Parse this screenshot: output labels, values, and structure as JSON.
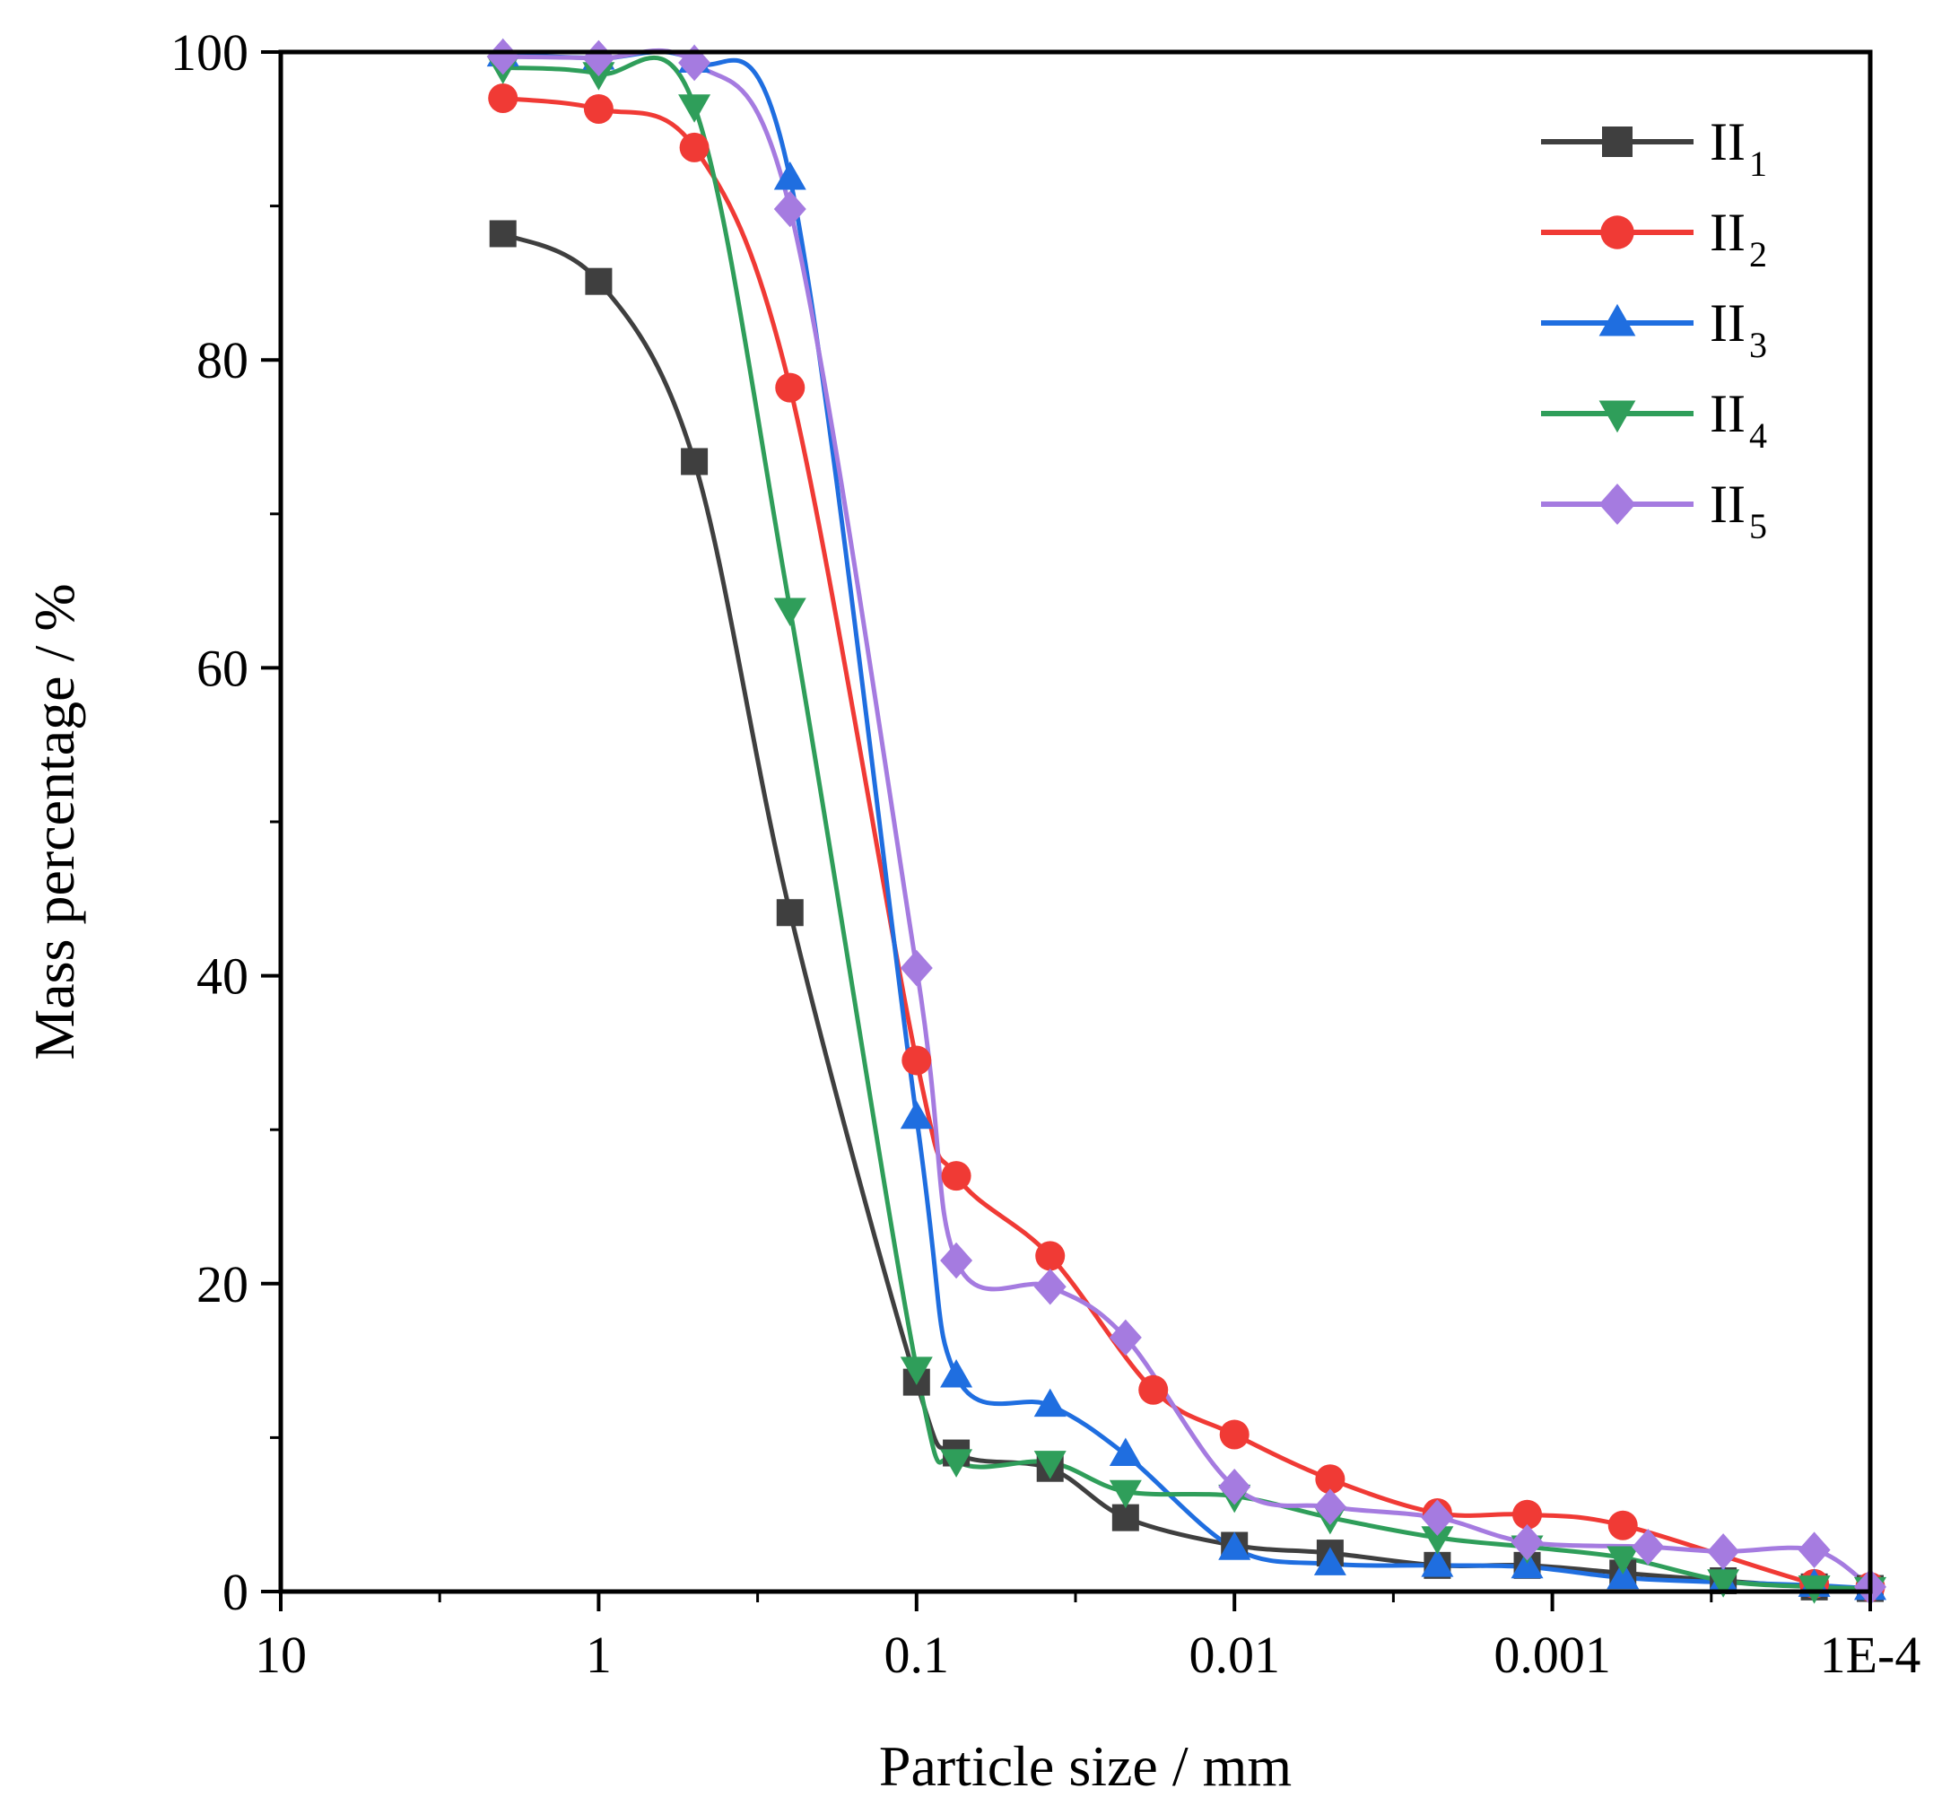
{
  "chart_data": {
    "type": "line",
    "x_scale": "log",
    "x_reversed": true,
    "xlabel": "Particle size / mm",
    "ylabel": "Mass percentage / %",
    "xlim": [
      10,
      0.0001
    ],
    "ylim": [
      0,
      100
    ],
    "x_ticks": [
      {
        "value": 10,
        "label": "10"
      },
      {
        "value": 1,
        "label": "1"
      },
      {
        "value": 0.1,
        "label": "0.1"
      },
      {
        "value": 0.01,
        "label": "0.01"
      },
      {
        "value": 0.001,
        "label": "0.001"
      },
      {
        "value": 0.0001,
        "label": "1E-4"
      }
    ],
    "y_ticks": [
      {
        "value": 0,
        "label": "0"
      },
      {
        "value": 20,
        "label": "20"
      },
      {
        "value": 40,
        "label": "40"
      },
      {
        "value": 60,
        "label": "60"
      },
      {
        "value": 80,
        "label": "80"
      },
      {
        "value": 100,
        "label": "100"
      }
    ],
    "grid": false,
    "legend_position": "top-right",
    "series": [
      {
        "name": "II",
        "sub": "1",
        "marker": "square",
        "color": "#3f3f3f",
        "x": [
          2,
          1,
          0.5,
          0.25,
          0.1,
          0.075,
          0.038,
          0.022,
          0.01,
          0.005,
          0.0023,
          0.0012,
          0.0006,
          0.00029,
          0.00015,
          0.0001
        ],
        "y": [
          88.2,
          85.1,
          73.4,
          44.1,
          13.6,
          9.0,
          8.0,
          4.8,
          3.0,
          2.5,
          1.7,
          1.7,
          1.2,
          0.7,
          0.3,
          0.2
        ]
      },
      {
        "name": "II",
        "sub": "2",
        "marker": "circle",
        "color": "#f03a35",
        "x": [
          2,
          1,
          0.5,
          0.25,
          0.1,
          0.075,
          0.038,
          0.018,
          0.01,
          0.005,
          0.0023,
          0.0012,
          0.0006,
          0.00015,
          0.0001
        ],
        "y": [
          97.0,
          96.3,
          93.8,
          78.2,
          34.5,
          27.0,
          21.8,
          13.1,
          10.2,
          7.3,
          5.1,
          5.0,
          4.3,
          0.5,
          0.3
        ]
      },
      {
        "name": "II",
        "sub": "3",
        "marker": "triangle-up",
        "color": "#1f6ee0",
        "x": [
          2,
          1,
          0.5,
          0.25,
          0.1,
          0.075,
          0.038,
          0.022,
          0.01,
          0.005,
          0.0023,
          0.0012,
          0.0006,
          0.00029,
          0.00015,
          0.0001
        ],
        "y": [
          99.8,
          99.6,
          99.4,
          91.8,
          30.8,
          14.0,
          12.1,
          8.9,
          2.8,
          1.8,
          1.7,
          1.6,
          0.9,
          0.6,
          0.4,
          0.2
        ]
      },
      {
        "name": "II",
        "sub": "4",
        "marker": "triangle-down",
        "color": "#2f9e5a",
        "x": [
          2,
          1,
          0.5,
          0.25,
          0.1,
          0.075,
          0.038,
          0.022,
          0.01,
          0.005,
          0.0023,
          0.0012,
          0.0006,
          0.00029,
          0.00015,
          0.0001
        ],
        "y": [
          99.0,
          98.6,
          96.5,
          63.8,
          14.5,
          8.5,
          8.4,
          6.5,
          6.2,
          4.8,
          3.5,
          2.9,
          2.2,
          0.7,
          0.3,
          0.2
        ]
      },
      {
        "name": "II",
        "sub": "5",
        "marker": "diamond",
        "color": "#a57be0",
        "x": [
          2,
          1,
          0.5,
          0.25,
          0.1,
          0.075,
          0.038,
          0.022,
          0.01,
          0.005,
          0.0023,
          0.0012,
          0.0005,
          0.00029,
          0.00015,
          0.0001
        ],
        "y": [
          99.7,
          99.6,
          99.3,
          89.8,
          40.5,
          21.5,
          19.8,
          16.5,
          6.8,
          5.5,
          4.8,
          3.2,
          2.9,
          2.6,
          2.7,
          0.3
        ]
      }
    ]
  }
}
